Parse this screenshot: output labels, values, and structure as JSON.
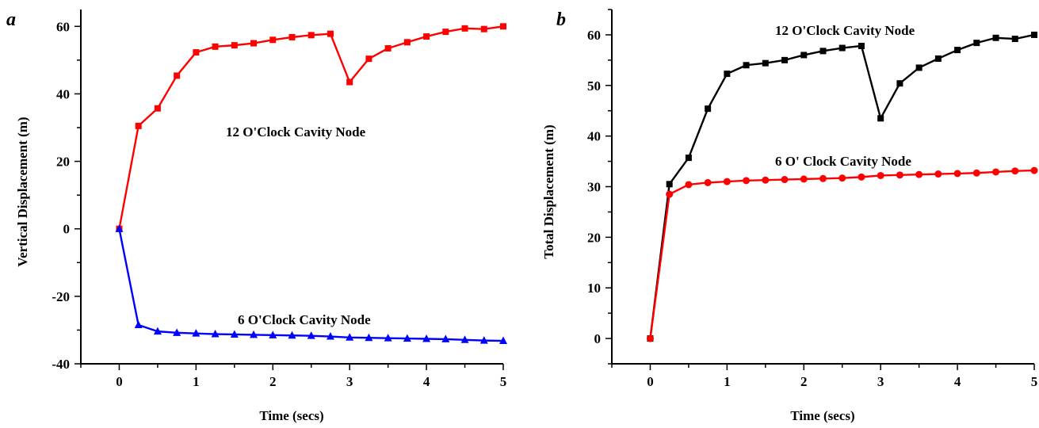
{
  "chart_data": [
    {
      "type": "line",
      "panel_label": "a",
      "xlabel": "Time (secs)",
      "ylabel": "Vertical Displacement (m)",
      "xlim": [
        -0.5,
        5
      ],
      "ylim": [
        -40,
        65
      ],
      "xticks": [
        0,
        1,
        2,
        3,
        4,
        5
      ],
      "yticks": [
        -40,
        -20,
        0,
        20,
        40,
        60
      ],
      "grid": false,
      "x": [
        0,
        0.25,
        0.5,
        0.75,
        1,
        1.25,
        1.5,
        1.75,
        2,
        2.25,
        2.5,
        2.75,
        3,
        3.25,
        3.5,
        3.75,
        4,
        4.25,
        4.5,
        4.75,
        5
      ],
      "series": [
        {
          "name": "12 O'Clock Cavity Node",
          "color": "#ff0000",
          "marker": "square",
          "values": [
            0,
            30.5,
            35.7,
            45.4,
            52.3,
            54.0,
            54.4,
            55.0,
            56.0,
            56.8,
            57.4,
            57.8,
            43.5,
            50.4,
            53.5,
            55.3,
            57.0,
            58.4,
            59.4,
            59.2,
            60.0
          ]
        },
        {
          "name": "6 O'Clock Cavity Node",
          "color": "#0000ff",
          "marker": "triangle",
          "values": [
            0,
            -28.5,
            -30.4,
            -30.8,
            -31.0,
            -31.2,
            -31.3,
            -31.4,
            -31.5,
            -31.6,
            -31.7,
            -31.9,
            -32.2,
            -32.3,
            -32.4,
            -32.5,
            -32.6,
            -32.7,
            -32.9,
            -33.1,
            -33.2
          ]
        }
      ]
    },
    {
      "type": "line",
      "panel_label": "b",
      "xlabel": "Time (secs)",
      "ylabel": "Total Displacement (m)",
      "xlim": [
        -0.5,
        5
      ],
      "ylim": [
        -5,
        65
      ],
      "xticks": [
        0,
        1,
        2,
        3,
        4,
        5
      ],
      "yticks": [
        0,
        10,
        20,
        30,
        40,
        50,
        60
      ],
      "grid": false,
      "x": [
        0,
        0.25,
        0.5,
        0.75,
        1,
        1.25,
        1.5,
        1.75,
        2,
        2.25,
        2.5,
        2.75,
        3,
        3.25,
        3.5,
        3.75,
        4,
        4.25,
        4.5,
        4.75,
        5
      ],
      "series": [
        {
          "name": "12 O'Clock Cavity Node",
          "color": "#000000",
          "marker": "square",
          "values": [
            0,
            30.5,
            35.7,
            45.4,
            52.3,
            54.0,
            54.4,
            55.0,
            56.0,
            56.8,
            57.4,
            57.8,
            43.5,
            50.4,
            53.5,
            55.3,
            57.0,
            58.4,
            59.4,
            59.2,
            60.0
          ]
        },
        {
          "name": "6 O' Clock Cavity Node",
          "color": "#ff0000",
          "marker": "circle",
          "values": [
            0,
            28.5,
            30.4,
            30.8,
            31.0,
            31.2,
            31.3,
            31.4,
            31.5,
            31.6,
            31.7,
            31.9,
            32.2,
            32.3,
            32.4,
            32.5,
            32.6,
            32.7,
            32.9,
            33.1,
            33.2
          ]
        }
      ]
    }
  ]
}
